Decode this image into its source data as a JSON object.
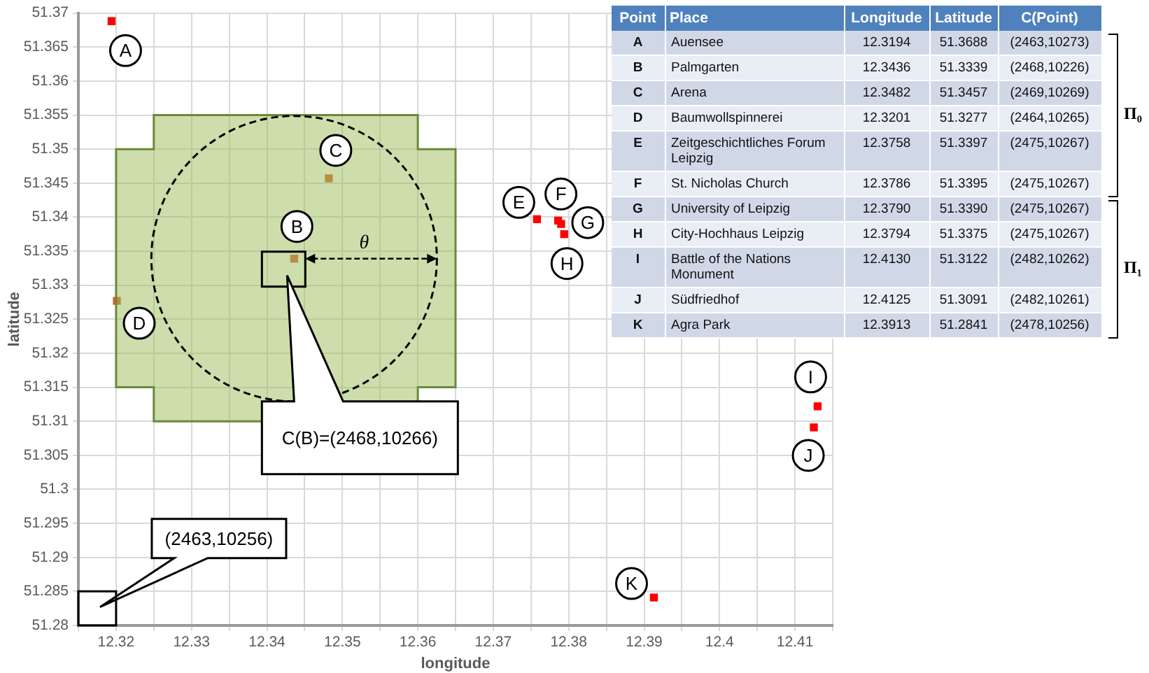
{
  "chart_data": {
    "type": "scatter",
    "xlabel": "longitude",
    "ylabel": "latitude",
    "x": [
      12.3194,
      12.3436,
      12.3482,
      12.3201,
      12.3758,
      12.3786,
      12.379,
      12.3794,
      12.413,
      12.4125,
      12.3913
    ],
    "values": [
      51.3688,
      51.3339,
      51.3457,
      51.3277,
      51.3397,
      51.3395,
      51.339,
      51.3375,
      51.3122,
      51.3091,
      51.2841
    ],
    "colors": [
      "#ff0000",
      "#d4622a",
      "#d4622a",
      "#d4622a",
      "#ff0000",
      "#ff0000",
      "#ff0000",
      "#ff0000",
      "#ff0000",
      "#ff0000",
      "#ff0000"
    ],
    "xlim": [
      12.315,
      12.415
    ],
    "xticks": [
      {
        "value": 12.315,
        "label": null
      },
      12.32,
      {
        "value": 12.325,
        "label": null
      },
      12.33,
      {
        "value": 12.335,
        "label": null
      },
      12.34,
      {
        "value": 12.345,
        "label": null
      },
      12.35,
      {
        "value": 12.355,
        "label": null
      },
      12.36,
      {
        "value": 12.365,
        "label": null
      },
      12.37,
      {
        "value": 12.375,
        "label": null
      },
      12.38,
      {
        "value": 12.385,
        "label": null
      },
      12.39,
      {
        "value": 12.395,
        "label": null
      },
      12.4,
      {
        "value": 12.405,
        "label": null
      },
      12.41,
      {
        "value": 12.415,
        "label": null
      }
    ],
    "ylim": [
      51.28,
      51.37
    ],
    "yticks": [
      51.28,
      51.285,
      51.29,
      51.295,
      51.3,
      51.305,
      51.31,
      51.315,
      51.32,
      51.325,
      51.33,
      51.335,
      51.34,
      51.345,
      51.35,
      51.355,
      51.36,
      51.365,
      51.37
    ],
    "grid": true,
    "legend": false,
    "marker": "square",
    "annotations": [
      {
        "text": "A",
        "x": 12.3194,
        "y": 51.3688
      },
      {
        "text": "B",
        "x": 12.3436,
        "y": 51.3339
      },
      {
        "text": "C",
        "x": 12.3482,
        "y": 51.3457
      },
      {
        "text": "D",
        "x": 12.3201,
        "y": 51.3277
      },
      {
        "text": "E",
        "x": 12.3758,
        "y": 51.3397
      },
      {
        "text": "F",
        "x": 12.3786,
        "y": 51.3395
      },
      {
        "text": "G",
        "x": 12.379,
        "y": 51.339
      },
      {
        "text": "H",
        "x": 12.3794,
        "y": 51.3375
      },
      {
        "text": "I",
        "x": 12.413,
        "y": 51.3122
      },
      {
        "text": "J",
        "x": 12.4125,
        "y": 51.3091
      },
      {
        "text": "K",
        "x": 12.3913,
        "y": 51.2841
      },
      "C(B)=(2468,10266)",
      "(2463,10256)",
      "θ",
      "Π₀",
      "Π₁",
      "Point",
      "Place",
      "Longitude",
      "Latitude",
      "C(Point)",
      "A",
      "Auensee",
      "12.3194",
      "51.3688",
      "(2463,10273)",
      "B",
      "Palmgarten",
      "12.3436",
      "51.3339",
      "(2468,10226)",
      "C",
      "Arena",
      "12.3482",
      "51.3457",
      "(2469,10269)",
      "D",
      "Baumwollspinnerei",
      "12.3201",
      "51.3277",
      "(2464,10265)",
      "E",
      "Zeitgeschichtliches Forum Leipzig",
      "12.3758",
      "51.3397",
      "(2475,10267)",
      "F",
      "St. Nicholas Church",
      "12.3786",
      "51.3395",
      "(2475,10267)",
      "G",
      "University of Leipzig",
      "12.3790",
      "51.3390",
      "(2475,10267)",
      "H",
      "City-Hochhaus Leipzig",
      "12.3794",
      "51.3375",
      "(2475,10267)",
      "I",
      "Battle of the Nations Monument",
      "12.4130",
      "51.3122",
      "(2482,10262)",
      "J",
      "Südfriedhof",
      "12.4125",
      "51.3091",
      "(2482,10261)",
      "K",
      "Agra Park",
      "12.3913",
      "51.2841",
      "(2478,10256)"
    ]
  }
}
